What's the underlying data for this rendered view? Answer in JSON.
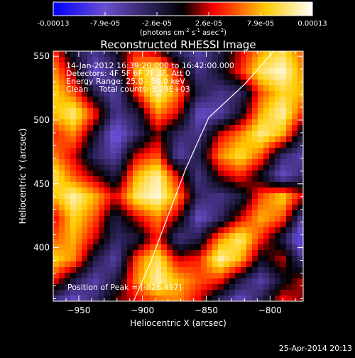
{
  "colorbar": {
    "tick_labels": [
      "-0.00013",
      "-7.9e-05",
      "-2.6e-05",
      "2.6e-05",
      "7.9e-05",
      "0.00013"
    ],
    "unit_main": "(photons cm",
    "unit_sup1": "-2",
    "unit_mid": " s",
    "unit_sup2": "-1",
    "unit_end": " asec",
    "unit_sup3": "-2",
    "unit_close": ")",
    "range": [
      -0.00013,
      0.00013
    ]
  },
  "overlay": {
    "time_range": "14-Jan-2012 16:39:20.000 to 16:42:00.000",
    "detectors": "Detectors: 4F 5F 6F 7F 8F, Att 0",
    "energy": "Energy Range: 25.0 - 50.0 keV",
    "method": "Clean",
    "counts": "Total counts: 3.29E+03",
    "peak": "Position of Peak = [-826,497]"
  },
  "footer": {
    "date": "25-Apr-2014 20:13"
  },
  "chart_data": {
    "type": "heatmap",
    "title": "Reconstructed RHESSI Image",
    "xlabel": "Heliocentric X (arcsec)",
    "ylabel": "Heliocentric Y (arcsec)",
    "xlim": [
      -970,
      -774
    ],
    "ylim": [
      358,
      554
    ],
    "xticks": [
      -950,
      -900,
      -850,
      -800
    ],
    "yticks": [
      400,
      450,
      500,
      550
    ],
    "xtick_labels": [
      "−950",
      "−900",
      "−850",
      "−800"
    ],
    "ytick_labels": [
      "400",
      "450",
      "500",
      "550"
    ],
    "colormap": [
      "#0000ff",
      "#6a4fd0",
      "#000000",
      "#ff0000",
      "#ffcc00",
      "#ffffff"
    ],
    "limb": [
      [
        -907,
        358
      ],
      [
        -893,
        390
      ],
      [
        -880,
        425
      ],
      [
        -866,
        462
      ],
      [
        -848,
        502
      ],
      [
        -820,
        528
      ],
      [
        -797,
        554
      ]
    ],
    "values": [
      [
        0.35,
        -0.2,
        -0.4,
        -0.1,
        0.3,
        0.1,
        -0.3,
        -0.5,
        -0.2,
        0.2,
        0.55,
        0.75,
        0.4
      ],
      [
        0.55,
        0.1,
        -0.6,
        -0.3,
        0.6,
        0.85,
        0.2,
        -0.4,
        -0.1,
        0.3,
        0.8,
        0.95,
        0.5
      ],
      [
        0.7,
        0.4,
        -0.2,
        -0.5,
        0.3,
        0.9,
        0.45,
        -0.2,
        -0.4,
        -0.3,
        0.4,
        0.7,
        0.6
      ],
      [
        0.6,
        0.85,
        0.3,
        -0.4,
        -0.2,
        0.5,
        0.2,
        -0.6,
        -0.5,
        -0.1,
        0.6,
        0.9,
        0.3
      ],
      [
        0.3,
        0.5,
        -0.1,
        -0.7,
        -0.3,
        0.1,
        -0.3,
        -0.4,
        0.2,
        0.5,
        0.85,
        0.6,
        -0.2
      ],
      [
        0.5,
        0.2,
        -0.3,
        -0.5,
        0.2,
        0.4,
        -0.5,
        -0.2,
        0.5,
        0.75,
        0.4,
        -0.3,
        -0.5
      ],
      [
        0.8,
        0.4,
        0.1,
        -0.2,
        0.6,
        0.9,
        0.2,
        -0.4,
        0.1,
        0.3,
        -0.1,
        -0.6,
        -0.3
      ],
      [
        0.6,
        0.9,
        0.6,
        0.2,
        0.8,
        0.95,
        0.5,
        -0.3,
        -0.4,
        -0.2,
        0.4,
        0.7,
        0.2
      ],
      [
        0.2,
        0.7,
        0.4,
        -0.2,
        0.2,
        0.5,
        0.1,
        -0.6,
        -0.3,
        0.2,
        0.6,
        0.4,
        -0.5
      ],
      [
        0.4,
        0.6,
        0.2,
        -0.3,
        -0.2,
        0.3,
        -0.4,
        -0.2,
        0.5,
        0.85,
        0.3,
        -0.2,
        -0.8
      ],
      [
        0.7,
        0.5,
        -0.2,
        -0.5,
        0.4,
        0.8,
        0.2,
        0.3,
        0.9,
        0.6,
        -0.1,
        0.2,
        -0.4
      ],
      [
        0.3,
        -0.2,
        -0.5,
        -0.2,
        0.5,
        0.9,
        0.6,
        0.4,
        0.3,
        -0.2,
        -0.5,
        -0.1,
        0.2
      ],
      [
        -0.4,
        -0.6,
        -0.3,
        0.1,
        0.2,
        0.4,
        0.5,
        0.2,
        -0.3,
        -0.6,
        -0.2,
        0.3,
        0.1
      ]
    ]
  }
}
